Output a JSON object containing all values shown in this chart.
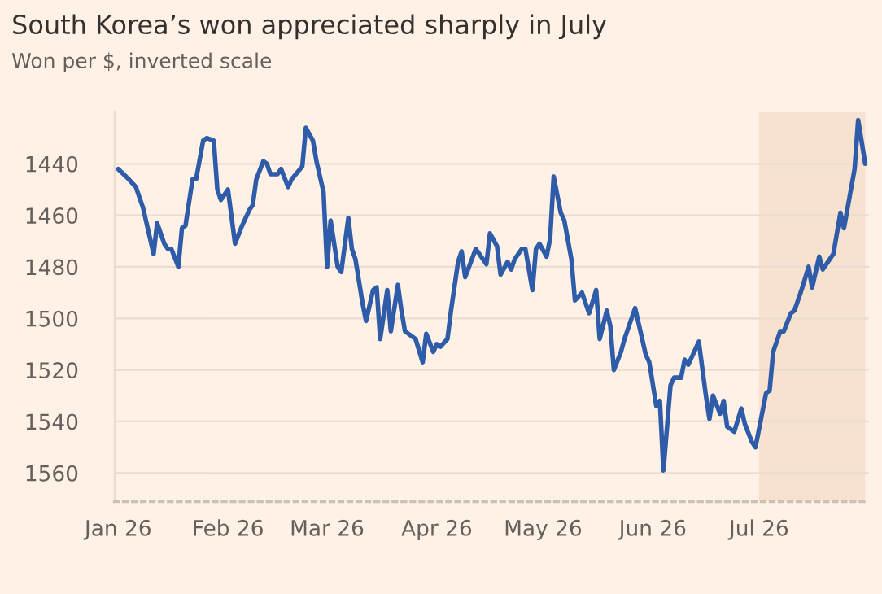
{
  "chart_data": {
    "type": "line",
    "title": "South Korea’s won appreciated sharply in July",
    "subtitle": "Won per $, inverted scale",
    "x": [
      "2026-01-01",
      "2026-01-04",
      "2026-01-06",
      "2026-01-08",
      "2026-01-11",
      "2026-01-12",
      "2026-01-14",
      "2026-01-15",
      "2026-01-16",
      "2026-01-18",
      "2026-01-19",
      "2026-01-20",
      "2026-01-22",
      "2026-01-23",
      "2026-01-25",
      "2026-01-26",
      "2026-01-28",
      "2026-01-29",
      "2026-01-30",
      "2026-02-01",
      "2026-02-03",
      "2026-02-05",
      "2026-02-07",
      "2026-02-08",
      "2026-02-09",
      "2026-02-11",
      "2026-02-12",
      "2026-02-13",
      "2026-02-15",
      "2026-02-16",
      "2026-02-18",
      "2026-02-19",
      "2026-02-22",
      "2026-02-23",
      "2026-02-25",
      "2026-02-26",
      "2026-02-28",
      "2026-03-01",
      "2026-03-02",
      "2026-03-04",
      "2026-03-05",
      "2026-03-07",
      "2026-03-08",
      "2026-03-09",
      "2026-03-11",
      "2026-03-12",
      "2026-03-14",
      "2026-03-15",
      "2026-03-16",
      "2026-03-18",
      "2026-03-19",
      "2026-03-21",
      "2026-03-22",
      "2026-03-23",
      "2026-03-25",
      "2026-03-26",
      "2026-03-28",
      "2026-03-29",
      "2026-03-31",
      "2026-04-01",
      "2026-04-02",
      "2026-04-04",
      "2026-04-05",
      "2026-04-07",
      "2026-04-08",
      "2026-04-09",
      "2026-04-12",
      "2026-04-15",
      "2026-04-16",
      "2026-04-18",
      "2026-04-19",
      "2026-04-21",
      "2026-04-22",
      "2026-04-23",
      "2026-04-25",
      "2026-04-26",
      "2026-04-28",
      "2026-04-29",
      "2026-04-30",
      "2026-05-02",
      "2026-05-03",
      "2026-05-04",
      "2026-05-06",
      "2026-05-07",
      "2026-05-09",
      "2026-05-10",
      "2026-05-12",
      "2026-05-13",
      "2026-05-14",
      "2026-05-16",
      "2026-05-17",
      "2026-05-19",
      "2026-05-20",
      "2026-05-21",
      "2026-05-23",
      "2026-05-24",
      "2026-05-27",
      "2026-05-29",
      "2026-05-30",
      "2026-05-31",
      "2026-06-02",
      "2026-06-03",
      "2026-06-04",
      "2026-06-06",
      "2026-06-07",
      "2026-06-09",
      "2026-06-10",
      "2026-06-11",
      "2026-06-14",
      "2026-06-16",
      "2026-06-17",
      "2026-06-18",
      "2026-06-20",
      "2026-06-21",
      "2026-06-22",
      "2026-06-24",
      "2026-06-26",
      "2026-06-27",
      "2026-06-29",
      "2026-06-30",
      "2026-07-03",
      "2026-07-04",
      "2026-07-05",
      "2026-07-07",
      "2026-07-08",
      "2026-07-10",
      "2026-07-11",
      "2026-07-13",
      "2026-07-15",
      "2026-07-16",
      "2026-07-18",
      "2026-07-19",
      "2026-07-21",
      "2026-07-22",
      "2026-07-24",
      "2026-07-25",
      "2026-07-28",
      "2026-07-29",
      "2026-07-31"
    ],
    "series": [
      {
        "color": "#2f5ca8",
        "values": [
          1442,
          1446,
          1449,
          1457,
          1475,
          1463,
          1471,
          1473,
          1473,
          1480,
          1465,
          1464,
          1446,
          1446,
          1431,
          1430,
          1431,
          1450,
          1454,
          1450,
          1471,
          1464,
          1458,
          1456,
          1446,
          1439,
          1440,
          1444,
          1444,
          1442,
          1449,
          1446,
          1441,
          1426,
          1431,
          1439,
          1451,
          1480,
          1462,
          1480,
          1482,
          1461,
          1473,
          1477,
          1494,
          1501,
          1489,
          1488,
          1508,
          1489,
          1505,
          1487,
          1497,
          1505,
          1507,
          1508,
          1517,
          1506,
          1513,
          1510,
          1511,
          1508,
          1497,
          1478,
          1474,
          1484,
          1473,
          1479,
          1467,
          1472,
          1483,
          1478,
          1481,
          1477,
          1473,
          1473,
          1489,
          1473,
          1471,
          1476,
          1469,
          1445,
          1459,
          1462,
          1477,
          1493,
          1490,
          1494,
          1498,
          1489,
          1508,
          1497,
          1503,
          1520,
          1513,
          1508,
          1496,
          1508,
          1514,
          1517,
          1534,
          1532,
          1559,
          1526,
          1523,
          1523,
          1516,
          1518,
          1509,
          1530,
          1539,
          1530,
          1537,
          1532,
          1542,
          1544,
          1535,
          1541,
          1548,
          1550,
          1529,
          1528,
          1513,
          1505,
          1505,
          1498,
          1497,
          1489,
          1480,
          1488,
          1476,
          1481,
          1477,
          1475,
          1459,
          1465,
          1442,
          1423,
          1440
        ]
      }
    ],
    "ylim": [
      1571,
      1420
    ],
    "yticks": [
      1440,
      1460,
      1480,
      1500,
      1520,
      1540,
      1560
    ],
    "xlim": [
      "2025-12-31",
      "2026-08-01"
    ],
    "xticks": [
      {
        "value": "2026-01-01",
        "label": "Jan 26"
      },
      {
        "value": "2026-02-01",
        "label": "Feb 26"
      },
      {
        "value": "2026-03-01",
        "label": "Mar 26"
      },
      {
        "value": "2026-04-01",
        "label": "Apr 26"
      },
      {
        "value": "2026-05-01",
        "label": "May 26"
      },
      {
        "value": "2026-06-01",
        "label": "Jun 26"
      },
      {
        "value": "2026-07-01",
        "label": "Jul 26"
      }
    ],
    "bands": [
      {
        "axis": "x",
        "from": "2026-07-01",
        "to": "2026-07-31",
        "color": "#f7e1cf"
      }
    ],
    "grid": "y",
    "legend": false,
    "marker": "none",
    "line_style": "solid"
  }
}
